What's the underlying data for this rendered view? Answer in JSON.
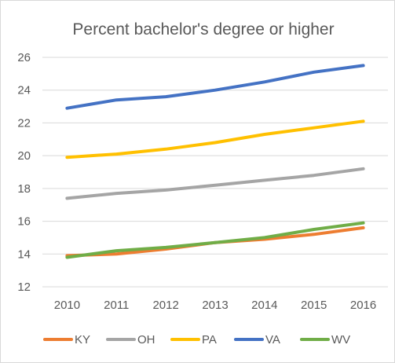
{
  "chart_data": {
    "type": "line",
    "title": "Percent bachelor's degree or higher",
    "xlabel": "",
    "ylabel": "",
    "categories": [
      "2010",
      "2011",
      "2012",
      "2013",
      "2014",
      "2015",
      "2016"
    ],
    "ylim": [
      12,
      26
    ],
    "yticks": [
      "12",
      "14",
      "16",
      "18",
      "20",
      "22",
      "24",
      "26"
    ],
    "grid": true,
    "legend_position": "bottom",
    "series": [
      {
        "name": "KY",
        "color": "#ED7D31",
        "values": [
          13.9,
          14.0,
          14.3,
          14.7,
          14.9,
          15.2,
          15.6
        ]
      },
      {
        "name": "OH",
        "color": "#A5A5A5",
        "values": [
          17.4,
          17.7,
          17.9,
          18.2,
          18.5,
          18.8,
          19.2
        ]
      },
      {
        "name": "PA",
        "color": "#FFC000",
        "values": [
          19.9,
          20.1,
          20.4,
          20.8,
          21.3,
          21.7,
          22.1
        ]
      },
      {
        "name": "VA",
        "color": "#4472C4",
        "values": [
          22.9,
          23.4,
          23.6,
          24.0,
          24.5,
          25.1,
          25.5
        ]
      },
      {
        "name": "WV",
        "color": "#70AD47",
        "values": [
          13.8,
          14.2,
          14.4,
          14.7,
          15.0,
          15.5,
          15.9
        ]
      }
    ]
  }
}
